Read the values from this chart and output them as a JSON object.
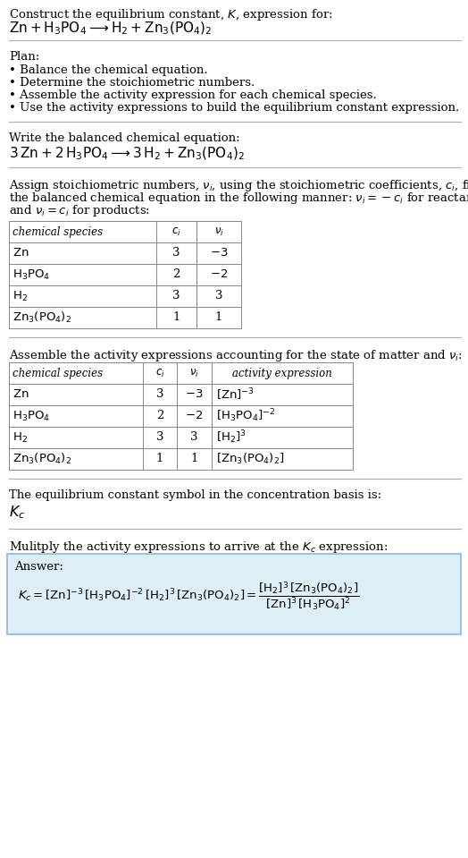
{
  "bg_color": "#ffffff",
  "text_color": "#000000",
  "title_line1": "Construct the equilibrium constant, $K$, expression for:",
  "title_line2": "$\\mathrm{Zn + H_3PO_4 \\longrightarrow H_2 + Zn_3(PO_4)_2}$",
  "plan_header": "Plan:",
  "plan_items": [
    "• Balance the chemical equation.",
    "• Determine the stoichiometric numbers.",
    "• Assemble the activity expression for each chemical species.",
    "• Use the activity expressions to build the equilibrium constant expression."
  ],
  "balanced_header": "Write the balanced chemical equation:",
  "balanced_eq": "$3\\,\\mathrm{Zn} + 2\\,\\mathrm{H_3PO_4} \\longrightarrow 3\\,\\mathrm{H_2} + \\mathrm{Zn_3(PO_4)_2}$",
  "stoich_intro_lines": [
    "Assign stoichiometric numbers, $\\nu_i$, using the stoichiometric coefficients, $c_i$, from",
    "the balanced chemical equation in the following manner: $\\nu_i = -c_i$ for reactants",
    "and $\\nu_i = c_i$ for products:"
  ],
  "table1_headers": [
    "chemical species",
    "$c_i$",
    "$\\nu_i$"
  ],
  "table1_rows": [
    [
      "$\\mathrm{Zn}$",
      "3",
      "$-3$"
    ],
    [
      "$\\mathrm{H_3PO_4}$",
      "2",
      "$-2$"
    ],
    [
      "$\\mathrm{H_2}$",
      "3",
      "3"
    ],
    [
      "$\\mathrm{Zn_3(PO_4)_2}$",
      "1",
      "1"
    ]
  ],
  "assemble_intro": "Assemble the activity expressions accounting for the state of matter and $\\nu_i$:",
  "table2_headers": [
    "chemical species",
    "$c_i$",
    "$\\nu_i$",
    "activity expression"
  ],
  "table2_rows": [
    [
      "$\\mathrm{Zn}$",
      "3",
      "$-3$",
      "$[\\mathrm{Zn}]^{-3}$"
    ],
    [
      "$\\mathrm{H_3PO_4}$",
      "2",
      "$-2$",
      "$[\\mathrm{H_3PO_4}]^{-2}$"
    ],
    [
      "$\\mathrm{H_2}$",
      "3",
      "3",
      "$[\\mathrm{H_2}]^3$"
    ],
    [
      "$\\mathrm{Zn_3(PO_4)_2}$",
      "1",
      "1",
      "$[\\mathrm{Zn_3(PO_4)_2}]$"
    ]
  ],
  "kc_intro": "The equilibrium constant symbol in the concentration basis is:",
  "kc_symbol": "$K_c$",
  "multiply_intro": "Mulitply the activity expressions to arrive at the $K_c$ expression:",
  "answer_label": "Answer:",
  "answer_line1": "$K_c = [\\mathrm{Zn}]^{-3}\\,[\\mathrm{H_3PO_4}]^{-2}\\,[\\mathrm{H_2}]^3\\,[\\mathrm{Zn_3(PO_4)_2}] = \\dfrac{[\\mathrm{H_2}]^3\\,[\\mathrm{Zn_3(PO_4)_2}]}{[\\mathrm{Zn}]^3\\,[\\mathrm{H_3PO_4}]^2}$",
  "answer_box_color": "#deeef6",
  "answer_box_border": "#90b8d0",
  "line_color": "#b0b0b0"
}
